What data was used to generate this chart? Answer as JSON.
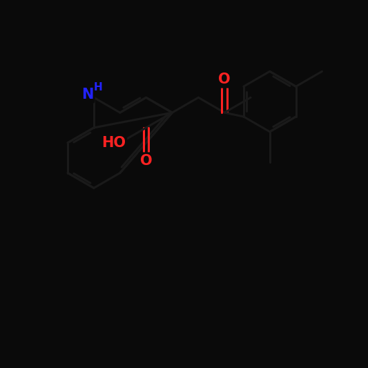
{
  "background_color": "#0a0a0a",
  "bond_color": "#1a1a1a",
  "bond_width": 2.2,
  "atom_colors": {
    "N": "#2222ff",
    "O": "#ff2222",
    "C": "#1a1a1a"
  },
  "fig_width": 5.33,
  "fig_height": 5.33,
  "dpi": 100,
  "xlim": [
    0,
    10
  ],
  "ylim": [
    0,
    10
  ],
  "nh_color": "#2222ff",
  "ho_color": "#ff2222",
  "o_color": "#ff2222",
  "font_size_atom": 15
}
